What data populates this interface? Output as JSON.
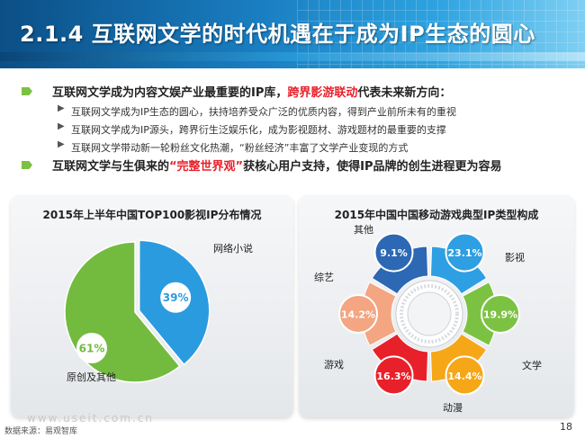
{
  "header": {
    "title": "2.1.4 互联网文学的时代机遇在于成为IP生态的圆心"
  },
  "bullets": {
    "point1_prefix": "互联网文学成为内容文娱产业最重要的IP库，",
    "point1_highlight": "跨界影游联动",
    "point1_suffix": "代表未来新方向：",
    "subpoints": [
      "互联网文学成为IP生态的圆心，扶持培养受众广泛的优质内容，得到产业前所未有的重视",
      "互联网文学成为IP源头，跨界衍生泛娱乐化，成为影视题材、游戏题材的最重要的支撑",
      "互联网文学带动新一轮粉丝文化热潮，“粉丝经济”丰富了文学产业变现的方式"
    ],
    "point2_prefix": "互联网文学与生俱来的",
    "point2_highlight": "“完整世界观”",
    "point2_suffix": "获核心用户支持，使得IP品牌的创生进程更为容易"
  },
  "footer": {
    "source": "数据来源：易观智库",
    "watermark": "www.useit.com.cn",
    "page": "18"
  },
  "colors": {
    "blue": "#2b9be0",
    "green": "#72bb3f",
    "red": "#e8202a"
  },
  "chart_data": [
    {
      "type": "pie",
      "title": "2015年上半年中国TOP100影视IP分布情况",
      "slices": [
        {
          "label": "网络小说",
          "value": 39,
          "value_label": "39%",
          "color": "#2b9be0"
        },
        {
          "label": "原创及其他",
          "value": 61,
          "value_label": "61%",
          "color": "#72bb3f"
        }
      ]
    },
    {
      "type": "pie",
      "title": "2015年中国中国移动游戏典型IP类型构成",
      "slices": [
        {
          "label": "影视",
          "value": 23.1,
          "value_label": "23.1%",
          "color": "#2e9fe2"
        },
        {
          "label": "文学",
          "value": 19.9,
          "value_label": "19.9%",
          "color": "#7cc242"
        },
        {
          "label": "动漫",
          "value": 14.4,
          "value_label": "14.4%",
          "color": "#f5a718"
        },
        {
          "label": "游戏",
          "value": 16.3,
          "value_label": "16.3%",
          "color": "#e8202a"
        },
        {
          "label": "综艺",
          "value": 14.2,
          "value_label": "14.2%",
          "color": "#f4a582"
        },
        {
          "label": "其他",
          "value": 9.1,
          "value_label": "9.1%",
          "color": "#2c68b3"
        }
      ]
    }
  ]
}
